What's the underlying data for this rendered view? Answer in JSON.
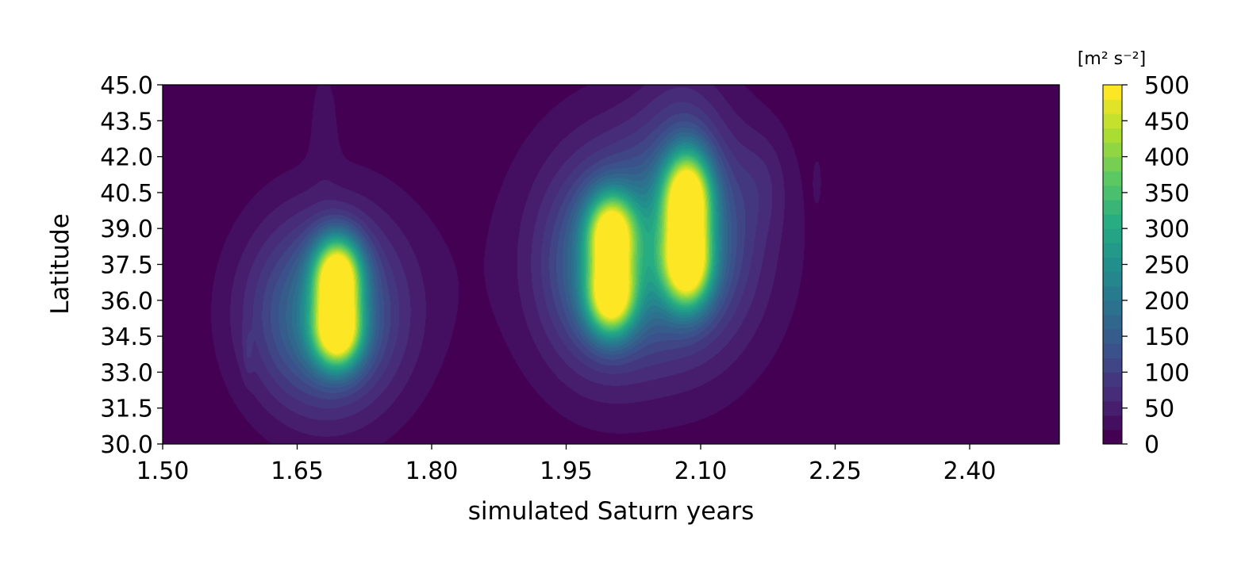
{
  "chart_data": {
    "type": "heatmap",
    "subtype": "filled-contour",
    "colormap": "viridis",
    "xlabel": "simulated Saturn years",
    "ylabel": "Latitude",
    "xlim": [
      1.5,
      2.5
    ],
    "ylim": [
      30.0,
      45.0
    ],
    "x_ticks": [
      "1.50",
      "1.65",
      "1.80",
      "1.95",
      "2.10",
      "2.25",
      "2.40"
    ],
    "y_ticks": [
      "30.0",
      "31.5",
      "33.0",
      "34.5",
      "36.0",
      "37.5",
      "39.0",
      "40.5",
      "42.0",
      "43.5",
      "45.0"
    ],
    "grid": false,
    "legend": "none",
    "colorbar": {
      "label": "[m² s⁻²]",
      "min": 0,
      "max": 500,
      "levels": 25,
      "ticks": [
        "0",
        "50",
        "100",
        "150",
        "200",
        "250",
        "300",
        "350",
        "400",
        "450",
        "500"
      ]
    },
    "features": [
      {
        "x": 1.695,
        "y": 37.0,
        "peak": 480,
        "sx": 0.018,
        "sy": 1.1
      },
      {
        "x": 1.695,
        "y": 34.7,
        "peak": 460,
        "sx": 0.018,
        "sy": 1.0
      },
      {
        "x": 1.68,
        "y": 35.3,
        "peak": 170,
        "sx": 0.055,
        "sy": 2.6
      },
      {
        "x": 1.69,
        "y": 36.0,
        "peak": 40,
        "sx": 0.075,
        "sy": 3.8
      },
      {
        "x": 2.0,
        "y": 38.8,
        "peak": 400,
        "sx": 0.018,
        "sy": 1.1
      },
      {
        "x": 2.0,
        "y": 36.2,
        "peak": 430,
        "sx": 0.018,
        "sy": 1.1
      },
      {
        "x": 1.99,
        "y": 37.4,
        "peak": 160,
        "sx": 0.045,
        "sy": 2.8
      },
      {
        "x": 2.085,
        "y": 40.3,
        "peak": 470,
        "sx": 0.018,
        "sy": 1.3
      },
      {
        "x": 2.085,
        "y": 37.5,
        "peak": 450,
        "sx": 0.018,
        "sy": 1.2
      },
      {
        "x": 2.08,
        "y": 38.6,
        "peak": 170,
        "sx": 0.05,
        "sy": 3.0
      },
      {
        "x": 2.04,
        "y": 38.2,
        "peak": 45,
        "sx": 0.12,
        "sy": 4.8
      },
      {
        "x": 2.17,
        "y": 41.0,
        "peak": 25,
        "sx": 0.02,
        "sy": 1.5
      },
      {
        "x": 1.68,
        "y": 43.8,
        "peak": 25,
        "sx": 0.012,
        "sy": 1.8
      },
      {
        "x": 2.08,
        "y": 44.0,
        "peak": 28,
        "sx": 0.03,
        "sy": 1.6
      },
      {
        "x": 1.595,
        "y": 33.8,
        "peak": 24,
        "sx": 0.004,
        "sy": 0.7
      },
      {
        "x": 2.23,
        "y": 41.0,
        "peak": 22,
        "sx": 0.003,
        "sy": 0.6
      }
    ]
  }
}
